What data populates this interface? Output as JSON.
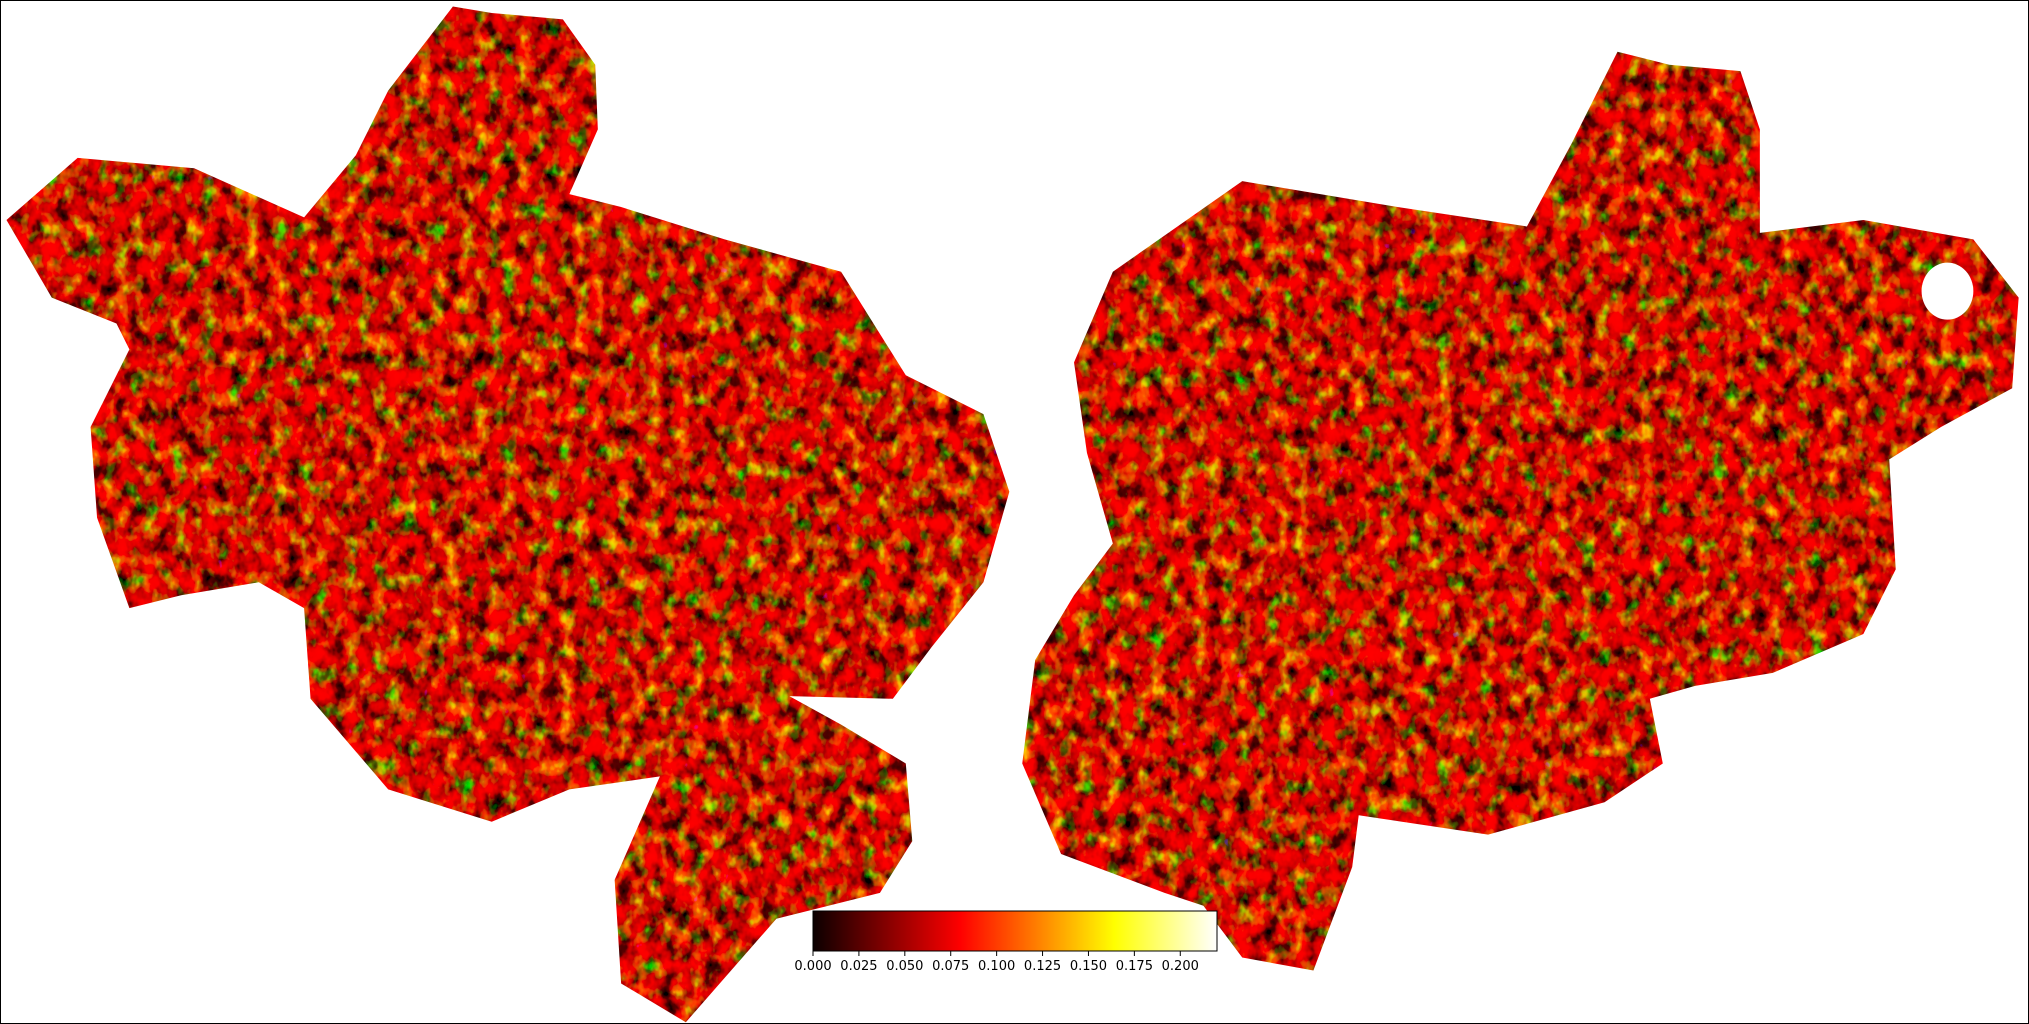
{
  "colorbar": {
    "colormap": "hot",
    "lim": [
      0,
      0.22
    ],
    "ticks": [
      {
        "value": 0,
        "label": "0.000"
      },
      {
        "value": 0.025,
        "label": "0.025"
      },
      {
        "value": 0.05,
        "label": "0.050"
      },
      {
        "value": 0.075,
        "label": "0.075"
      },
      {
        "value": 0.1,
        "label": "0.100"
      },
      {
        "value": 0.125,
        "label": "0.125"
      },
      {
        "value": 0.15,
        "label": "0.150"
      },
      {
        "value": 0.175,
        "label": "0.175"
      },
      {
        "value": 0.2,
        "label": "0.200"
      }
    ]
  }
}
